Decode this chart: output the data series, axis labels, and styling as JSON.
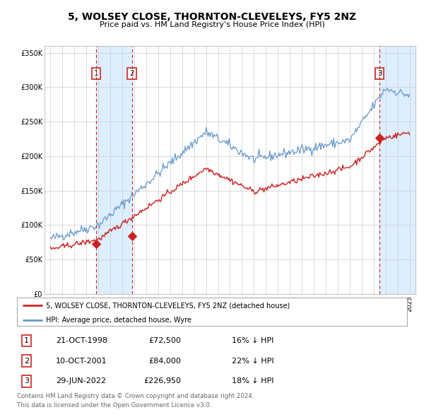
{
  "title": "5, WOLSEY CLOSE, THORNTON-CLEVELEYS, FY5 2NZ",
  "subtitle": "Price paid vs. HM Land Registry's House Price Index (HPI)",
  "transactions": [
    {
      "num": 1,
      "date_label": "21-OCT-1998",
      "price": 72500,
      "price_str": "£72,500",
      "pct": "16%",
      "year_x": 1998.8
    },
    {
      "num": 2,
      "date_label": "10-OCT-2001",
      "price": 84000,
      "price_str": "£84,000",
      "pct": "22%",
      "year_x": 2001.8
    },
    {
      "num": 3,
      "date_label": "29-JUN-2022",
      "price": 226950,
      "price_str": "£226,950",
      "pct": "18%",
      "year_x": 2022.5
    }
  ],
  "legend_line1": "5, WOLSEY CLOSE, THORNTON-CLEVELEYS, FY5 2NZ (detached house)",
  "legend_line2": "HPI: Average price, detached house, Wyre",
  "footer1": "Contains HM Land Registry data © Crown copyright and database right 2024.",
  "footer2": "This data is licensed under the Open Government Licence v3.0.",
  "hpi_color": "#6699cc",
  "price_color": "#cc2222",
  "marker_color": "#cc2222",
  "vline_color": "#cc2222",
  "shade_color": "#ddeeff",
  "box_color": "#cc2222",
  "ylim": [
    0,
    360000
  ],
  "yticks": [
    0,
    50000,
    100000,
    150000,
    200000,
    250000,
    300000,
    350000
  ],
  "xlim_start": 1994.5,
  "xlim_end": 2025.5
}
